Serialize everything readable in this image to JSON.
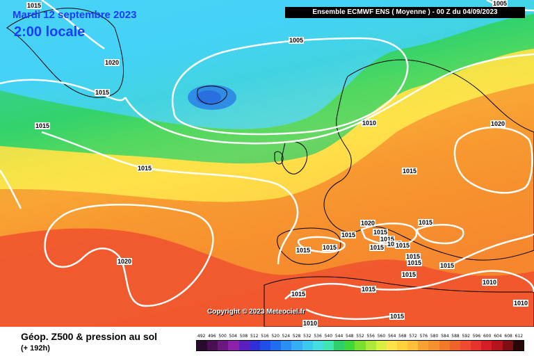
{
  "map": {
    "date_line": "Mardi 12 septembre 2023",
    "time_line": "2:00 locale",
    "header": "Ensemble ECMWF ENS  ( Moyenne )  -  00 Z du 04/09/2023",
    "copyright": "Copyright © 2023 Meteociel.fr",
    "colors": {
      "cold": "#3b7bd8",
      "sky": "#5fd0f5",
      "cyan": "#3cc9f0",
      "green": "#2fd06a",
      "yellowgreen": "#aee83a",
      "yellow": "#ffe24a",
      "orange": "#f9a035",
      "deep_orange": "#f07a28",
      "red": "#f04a30",
      "isobar": "#ffffff"
    },
    "isobar_labels": [
      {
        "text": "1015",
        "id": "nw-top"
      },
      {
        "text": "1020",
        "id": "greenland-west"
      },
      {
        "text": "1015",
        "id": "greenland-south"
      },
      {
        "text": "1015",
        "id": "labrador"
      },
      {
        "text": "1005",
        "id": "iceland-low"
      },
      {
        "text": "1005",
        "id": "scandinavia-top"
      },
      {
        "text": "1010",
        "id": "north-sea"
      },
      {
        "text": "1020",
        "id": "russia-high"
      },
      {
        "text": "1015",
        "id": "atlantic-mid"
      },
      {
        "text": "1015",
        "id": "germany"
      },
      {
        "text": "1020",
        "id": "alps"
      },
      {
        "text": "1015",
        "id": "france"
      },
      {
        "text": "1015",
        "id": "balkans"
      },
      {
        "text": "1015",
        "id": "italy-1"
      },
      {
        "text": "1015",
        "id": "italy-2"
      },
      {
        "text": "1015",
        "id": "italy-3"
      },
      {
        "text": "1015",
        "id": "italy-4"
      },
      {
        "text": "1015",
        "id": "iberia-west"
      },
      {
        "text": "1015",
        "id": "iberia-east"
      },
      {
        "text": "1015",
        "id": "sardinia"
      },
      {
        "text": "1015",
        "id": "sicily"
      },
      {
        "text": "1015",
        "id": "greece"
      },
      {
        "text": "1015",
        "id": "turkey"
      },
      {
        "text": "1010",
        "id": "levant"
      },
      {
        "text": "1020",
        "id": "azores-high"
      },
      {
        "text": "1015",
        "id": "morocco"
      },
      {
        "text": "1015",
        "id": "algeria"
      },
      {
        "text": "1015",
        "id": "libya"
      },
      {
        "text": "1015",
        "id": "egypt"
      },
      {
        "text": "1010",
        "id": "sahara"
      },
      {
        "text": "1010",
        "id": "east-edge"
      }
    ]
  },
  "footer": {
    "title": "Géop. Z500 & pression au sol",
    "subtitle": "(+ 192h)",
    "scale": [
      "492",
      "496",
      "500",
      "504",
      "508",
      "512",
      "516",
      "520",
      "524",
      "528",
      "532",
      "536",
      "540",
      "544",
      "548",
      "552",
      "556",
      "560",
      "564",
      "568",
      "572",
      "576",
      "580",
      "584",
      "588",
      "592",
      "596",
      "600",
      "604",
      "608",
      "612"
    ],
    "scale_colors": [
      "#2a0a2e",
      "#4a0f52",
      "#6a1780",
      "#8a22a8",
      "#5a1fbf",
      "#2e2fd6",
      "#1f4fe8",
      "#1f6ef0",
      "#2a8ef4",
      "#35aef6",
      "#3cc9f0",
      "#45dde0",
      "#3fe6b0",
      "#2fd06a",
      "#3fd83a",
      "#7ae030",
      "#aee83a",
      "#d8f040",
      "#ffe24a",
      "#ffd23c",
      "#ffbf3a",
      "#f9a035",
      "#f5902f",
      "#f07a28",
      "#ee6328",
      "#f04a30",
      "#e8322c",
      "#d21e24",
      "#b4141c",
      "#7d0e12",
      "#2a0606"
    ]
  }
}
